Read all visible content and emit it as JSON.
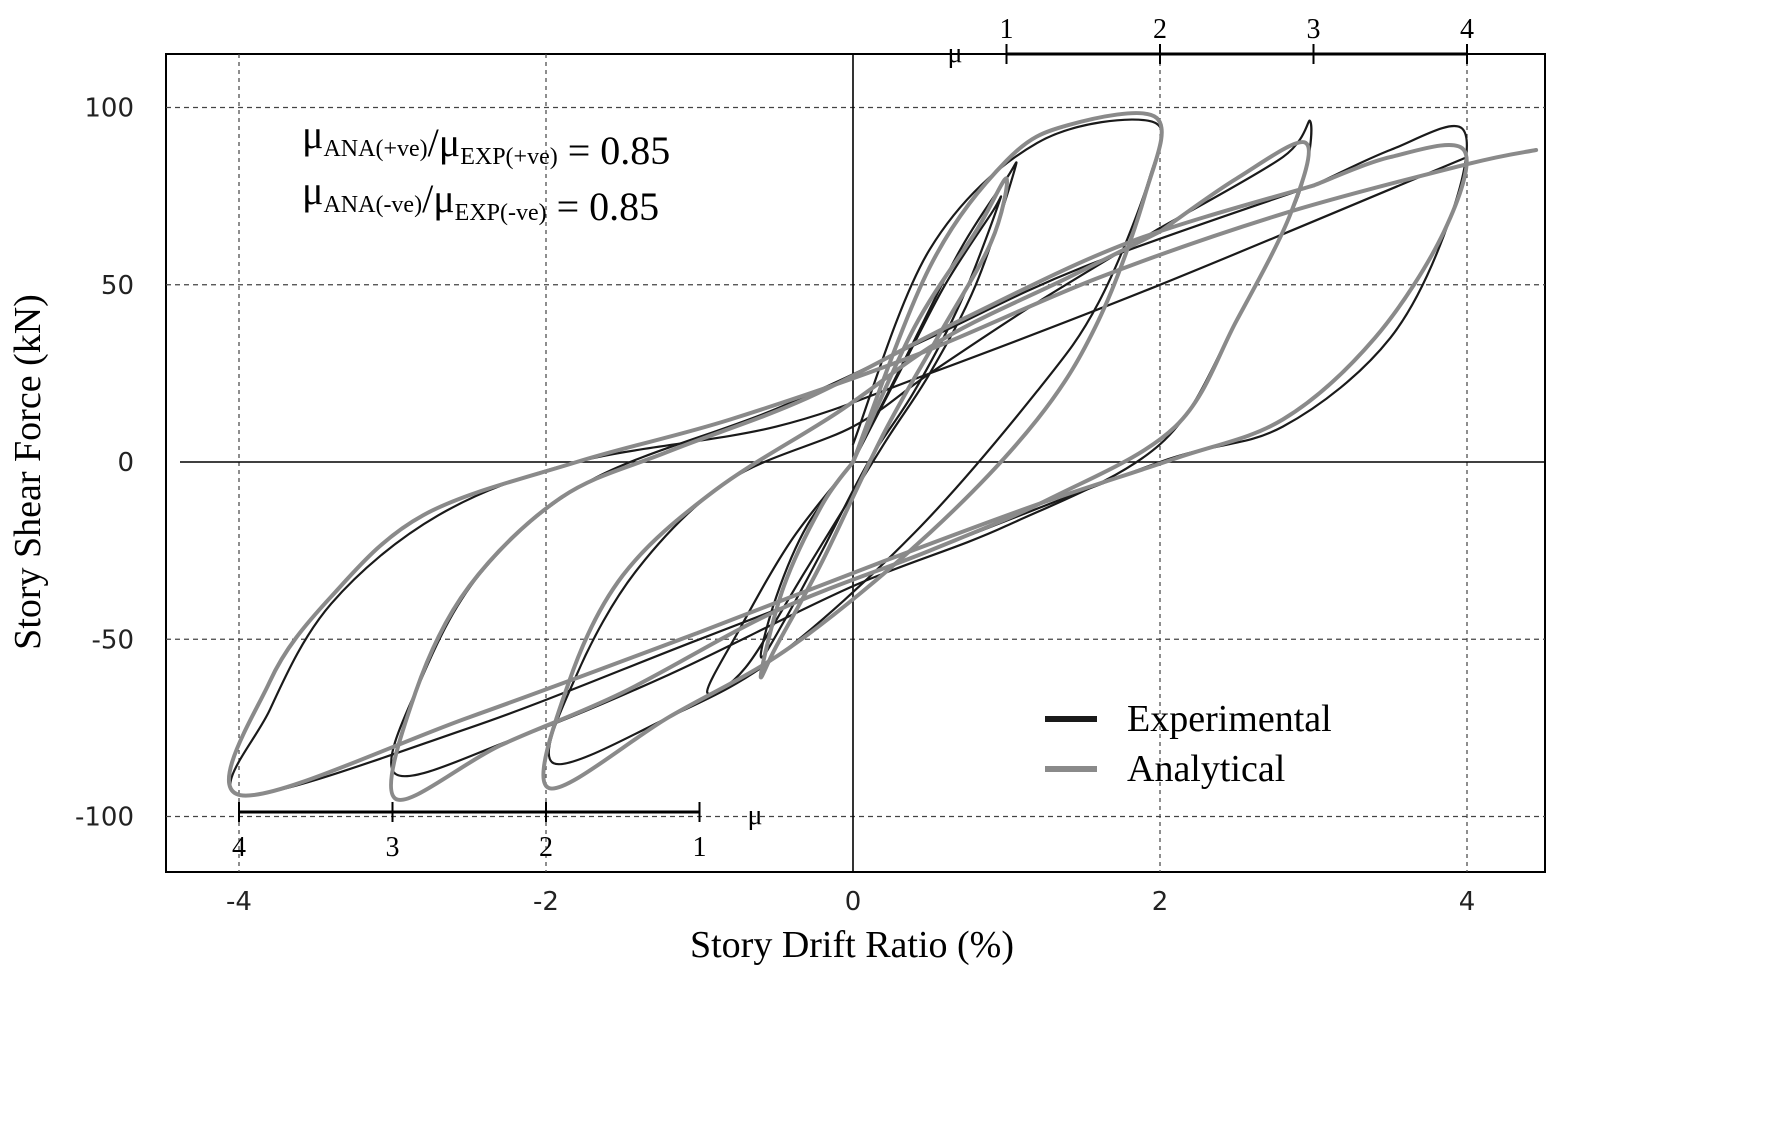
{
  "chart_data": {
    "type": "line",
    "title": "",
    "xlabel": "Story Drift Ratio (%)",
    "ylabel": "Story Shear Force (kN)",
    "xlim": [
      -4.8,
      4.5
    ],
    "ylim": [
      -117,
      117
    ],
    "grid": true,
    "x_ticks": [
      {
        "value": -4,
        "label": "-4"
      },
      {
        "value": -2,
        "label": "-2"
      },
      {
        "value": 0,
        "label": "0"
      },
      {
        "value": 2,
        "label": "2"
      },
      {
        "value": 4,
        "label": "4"
      }
    ],
    "y_ticks": [
      {
        "value": 100,
        "label": "100"
      },
      {
        "value": 50,
        "label": "50"
      },
      {
        "value": 0,
        "label": "0"
      },
      {
        "value": -50,
        "label": "-50"
      },
      {
        "value": -100,
        "label": "-100"
      }
    ],
    "ductility_top": {
      "symbol": "μ",
      "ticks": [
        {
          "x": 1,
          "label": "1"
        },
        {
          "x": 2,
          "label": "2"
        },
        {
          "x": 3,
          "label": "3"
        },
        {
          "x": 4,
          "label": "4"
        }
      ]
    },
    "ductility_bottom": {
      "symbol": "μ",
      "ticks": [
        {
          "x": -4,
          "label": "4"
        },
        {
          "x": -3,
          "label": "3"
        },
        {
          "x": -2,
          "label": "2"
        },
        {
          "x": -1,
          "label": "1"
        }
      ]
    },
    "ratios": [
      {
        "mu": "μ",
        "sub1": "ANA(+ve)",
        "sep": "/",
        "sub2": "EXP(+ve)",
        "value": "= 0.85"
      },
      {
        "mu": "μ",
        "sub1": "ANA(-ve)",
        "sep": "/",
        "sub2": "EXP(-ve)",
        "value": "= 0.85"
      }
    ],
    "legend_position": "bottom-right",
    "series": [
      {
        "name": "Experimental",
        "color": "#1a1a1a",
        "width": 2.2,
        "loops": [
          [
            [
              0,
              0
            ],
            [
              0.3,
              25
            ],
            [
              0.6,
              50
            ],
            [
              0.9,
              70
            ],
            [
              0.95,
              73
            ],
            [
              0.7,
              45
            ],
            [
              0.4,
              20
            ],
            [
              0.1,
              0
            ],
            [
              -0.2,
              -25
            ],
            [
              -0.45,
              -45
            ],
            [
              -0.6,
              -55
            ],
            [
              -0.5,
              -38
            ],
            [
              -0.3,
              -18
            ],
            [
              0,
              0
            ]
          ],
          [
            [
              0,
              0
            ],
            [
              0.35,
              30
            ],
            [
              0.7,
              60
            ],
            [
              1,
              80
            ],
            [
              1.05,
              82
            ],
            [
              0.8,
              50
            ],
            [
              0.5,
              25
            ],
            [
              0.2,
              5
            ],
            [
              -0.3,
              -30
            ],
            [
              -0.7,
              -58
            ],
            [
              -0.95,
              -65
            ],
            [
              -0.75,
              -48
            ],
            [
              -0.4,
              -22
            ],
            [
              0,
              0
            ]
          ],
          [
            [
              0,
              5
            ],
            [
              0.5,
              60
            ],
            [
              1.2,
              90
            ],
            [
              1.95,
              96
            ],
            [
              1.93,
              80
            ],
            [
              1.6,
              45
            ],
            [
              1.2,
              20
            ],
            [
              0.4,
              -20
            ],
            [
              -0.5,
              -55
            ],
            [
              -1.2,
              -72
            ],
            [
              -1.95,
              -85
            ],
            [
              -1.8,
              -60
            ],
            [
              -1.4,
              -30
            ],
            [
              -0.8,
              -5
            ],
            [
              0,
              10
            ],
            [
              0.5,
              25
            ],
            [
              1.2,
              45
            ],
            [
              2,
              66
            ]
          ],
          [
            [
              2,
              66
            ],
            [
              2.8,
              86
            ],
            [
              2.98,
              96
            ],
            [
              2.9,
              75
            ],
            [
              2.5,
              40
            ],
            [
              2,
              5
            ],
            [
              1,
              -18
            ],
            [
              0,
              -35
            ],
            [
              -1.2,
              -60
            ],
            [
              -2.2,
              -78
            ],
            [
              -2.98,
              -88
            ],
            [
              -2.8,
              -60
            ],
            [
              -2.4,
              -30
            ],
            [
              -1.7,
              -5
            ],
            [
              -0.5,
              15
            ],
            [
              0.5,
              35
            ],
            [
              1.5,
              55
            ],
            [
              3,
              78
            ]
          ],
          [
            [
              3,
              78
            ],
            [
              3.5,
              88
            ],
            [
              3.97,
              94
            ],
            [
              3.9,
              70
            ],
            [
              3.5,
              35
            ],
            [
              2.8,
              10
            ],
            [
              2,
              0
            ],
            [
              0.5,
              -25
            ],
            [
              -1,
              -50
            ],
            [
              -2.5,
              -75
            ],
            [
              -3.98,
              -94
            ],
            [
              -3.8,
              -70
            ],
            [
              -3.4,
              -40
            ],
            [
              -2.7,
              -15
            ],
            [
              -1.8,
              0
            ],
            [
              -0.5,
              10
            ],
            [
              0.5,
              25
            ],
            [
              2,
              50
            ],
            [
              4,
              86
            ]
          ]
        ]
      },
      {
        "name": "Analytical",
        "color": "#8a8a8a",
        "width": 4,
        "loops": [
          [
            [
              0,
              0
            ],
            [
              0.4,
              38
            ],
            [
              0.8,
              65
            ],
            [
              1,
              80
            ],
            [
              0.9,
              62
            ],
            [
              0.55,
              35
            ],
            [
              0.2,
              8
            ],
            [
              -0.2,
              -28
            ],
            [
              -0.5,
              -52
            ],
            [
              -0.6,
              -60
            ],
            [
              -0.45,
              -35
            ],
            [
              -0.2,
              -12
            ],
            [
              0,
              0
            ]
          ],
          [
            [
              0,
              0
            ],
            [
              0.5,
              55
            ],
            [
              1,
              85
            ],
            [
              1.4,
              95
            ],
            [
              1.98,
              97
            ],
            [
              1.9,
              75
            ],
            [
              1.6,
              40
            ],
            [
              1.2,
              12
            ],
            [
              0.5,
              -20
            ],
            [
              -0.4,
              -52
            ],
            [
              -1.2,
              -72
            ],
            [
              -1.98,
              -92
            ],
            [
              -1.85,
              -62
            ],
            [
              -1.5,
              -32
            ],
            [
              -0.9,
              -8
            ],
            [
              -0.1,
              14
            ],
            [
              0.6,
              35
            ],
            [
              1.4,
              52
            ],
            [
              2,
              65
            ]
          ],
          [
            [
              2,
              65
            ],
            [
              2.5,
              80
            ],
            [
              2.95,
              90
            ],
            [
              2.85,
              70
            ],
            [
              2.5,
              40
            ],
            [
              2.1,
              10
            ],
            [
              1.3,
              -10
            ],
            [
              0.5,
              -25
            ],
            [
              -0.5,
              -42
            ],
            [
              -1.5,
              -65
            ],
            [
              -2.3,
              -80
            ],
            [
              -2.98,
              -95
            ],
            [
              -2.85,
              -65
            ],
            [
              -2.5,
              -35
            ],
            [
              -1.9,
              -10
            ],
            [
              -1.2,
              3
            ],
            [
              -0.3,
              18
            ],
            [
              0.7,
              40
            ],
            [
              1.8,
              62
            ],
            [
              3,
              78
            ]
          ],
          [
            [
              3,
              78
            ],
            [
              3.5,
              86
            ],
            [
              3.98,
              88
            ],
            [
              3.85,
              65
            ],
            [
              3.4,
              35
            ],
            [
              2.8,
              12
            ],
            [
              2.1,
              1
            ],
            [
              1.2,
              -12
            ],
            [
              0.2,
              -28
            ],
            [
              -1,
              -48
            ],
            [
              -2.5,
              -72
            ],
            [
              -3.99,
              -94
            ],
            [
              -3.8,
              -62
            ],
            [
              -3.4,
              -38
            ],
            [
              -2.8,
              -15
            ],
            [
              -1.8,
              0
            ],
            [
              -0.8,
              12
            ],
            [
              0.4,
              30
            ],
            [
              1.6,
              52
            ],
            [
              2.8,
              70
            ],
            [
              4,
              84
            ],
            [
              4.45,
              88
            ]
          ]
        ]
      }
    ]
  }
}
